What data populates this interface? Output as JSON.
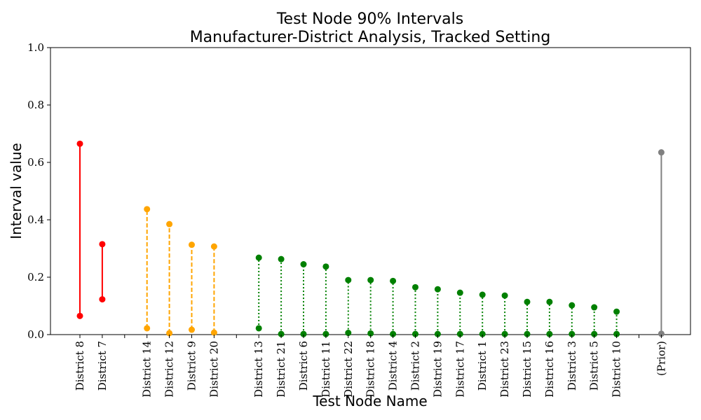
{
  "chart_data": {
    "type": "interval",
    "title": [
      "Test Node 90% Intervals",
      "Manufacturer-District Analysis, Tracked Setting"
    ],
    "xlabel": "Test Node Name",
    "ylabel": "Interval value",
    "ylim": [
      0,
      1.0
    ],
    "yticks": [
      "0.0",
      "0.2",
      "0.4",
      "0.6",
      "0.8",
      "1.0"
    ],
    "grid": false,
    "groups": [
      {
        "color": "#ff0000",
        "linestyle": "solid",
        "items": [
          {
            "label": "District 8",
            "low": 0.065,
            "high": 0.665
          },
          {
            "label": "District 7",
            "low": 0.123,
            "high": 0.315
          }
        ]
      },
      {
        "color": "#ffa500",
        "linestyle": "dashed",
        "items": [
          {
            "label": "District 14",
            "low": 0.022,
            "high": 0.437
          },
          {
            "label": "District 12",
            "low": 0.005,
            "high": 0.385
          },
          {
            "label": "District 9",
            "low": 0.017,
            "high": 0.313
          },
          {
            "label": "District 20",
            "low": 0.007,
            "high": 0.307
          }
        ]
      },
      {
        "color": "#008000",
        "linestyle": "dotted",
        "items": [
          {
            "label": "District 13",
            "low": 0.022,
            "high": 0.268
          },
          {
            "label": "District 21",
            "low": 0.002,
            "high": 0.263
          },
          {
            "label": "District 6",
            "low": 0.002,
            "high": 0.245
          },
          {
            "label": "District 11",
            "low": 0.002,
            "high": 0.237
          },
          {
            "label": "District 22",
            "low": 0.006,
            "high": 0.19
          },
          {
            "label": "District 18",
            "low": 0.004,
            "high": 0.19
          },
          {
            "label": "District 4",
            "low": 0.002,
            "high": 0.187
          },
          {
            "label": "District 2",
            "low": 0.002,
            "high": 0.165
          },
          {
            "label": "District 19",
            "low": 0.002,
            "high": 0.158
          },
          {
            "label": "District 17",
            "low": 0.002,
            "high": 0.146
          },
          {
            "label": "District 1",
            "low": 0.002,
            "high": 0.139
          },
          {
            "label": "District 23",
            "low": 0.002,
            "high": 0.136
          },
          {
            "label": "District 15",
            "low": 0.002,
            "high": 0.114
          },
          {
            "label": "District 16",
            "low": 0.002,
            "high": 0.114
          },
          {
            "label": "District 3",
            "low": 0.002,
            "high": 0.102
          },
          {
            "label": "District 5",
            "low": 0.002,
            "high": 0.095
          },
          {
            "label": "District 10",
            "low": 0.002,
            "high": 0.08
          }
        ]
      },
      {
        "color": "#808080",
        "linestyle": "solid",
        "items": [
          {
            "label": "(Prior)",
            "low": 0.003,
            "high": 0.635
          }
        ]
      }
    ]
  }
}
